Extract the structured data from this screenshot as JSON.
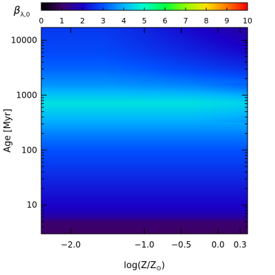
{
  "chart_data": {
    "type": "heatmap",
    "colorbar": {
      "label": "β",
      "label_sub": "λ,0",
      "ticks": [
        "0",
        "1",
        "2",
        "3",
        "4",
        "5",
        "6",
        "7",
        "8",
        "9",
        "10"
      ],
      "range": [
        0,
        10
      ],
      "colormap": [
        "#000000",
        "#3d0066",
        "#1a00c8",
        "#0050ff",
        "#00b4ff",
        "#00ffcc",
        "#00ff40",
        "#90ff00",
        "#ffe000",
        "#ff7800",
        "#ff0000"
      ]
    },
    "x": {
      "label": "log(Z/Z",
      "label_sub": "⊙",
      "label_close": ")",
      "ticks": [
        {
          "value": -2.0,
          "label": "−2.0"
        },
        {
          "value": -1.0,
          "label": "−1.0"
        },
        {
          "value": -0.5,
          "label": "−0.5"
        },
        {
          "value": 0.0,
          "label": "0.0"
        },
        {
          "value": 0.3,
          "label": "0.3"
        }
      ],
      "range": [
        -2.4,
        0.4
      ]
    },
    "y": {
      "label": "Age  [Myr]",
      "scale": "log",
      "ticks": [
        {
          "value": 10,
          "label": "10"
        },
        {
          "value": 100,
          "label": "100"
        },
        {
          "value": 1000,
          "label": "1000"
        },
        {
          "value": 10000,
          "label": "10000"
        }
      ],
      "range": [
        3,
        17000
      ]
    },
    "profile": [
      {
        "age": 3,
        "beta": 1.0
      },
      {
        "age": 5,
        "beta": 1.1
      },
      {
        "age": 6,
        "beta": 1.6
      },
      {
        "age": 8,
        "beta": 1.9
      },
      {
        "age": 20,
        "beta": 2.3
      },
      {
        "age": 50,
        "beta": 2.7
      },
      {
        "age": 100,
        "beta": 3.0
      },
      {
        "age": 200,
        "beta": 3.5
      },
      {
        "age": 400,
        "beta": 4.1
      },
      {
        "age": 700,
        "beta": 4.6
      },
      {
        "age": 1000,
        "beta": 4.2
      },
      {
        "age": 1500,
        "beta": 3.7
      },
      {
        "age": 3000,
        "beta": 3.2
      },
      {
        "age": 6000,
        "beta": 2.9
      },
      {
        "age": 17000,
        "beta": 2.7
      }
    ],
    "old_metal_rich_beta": 1.6
  }
}
